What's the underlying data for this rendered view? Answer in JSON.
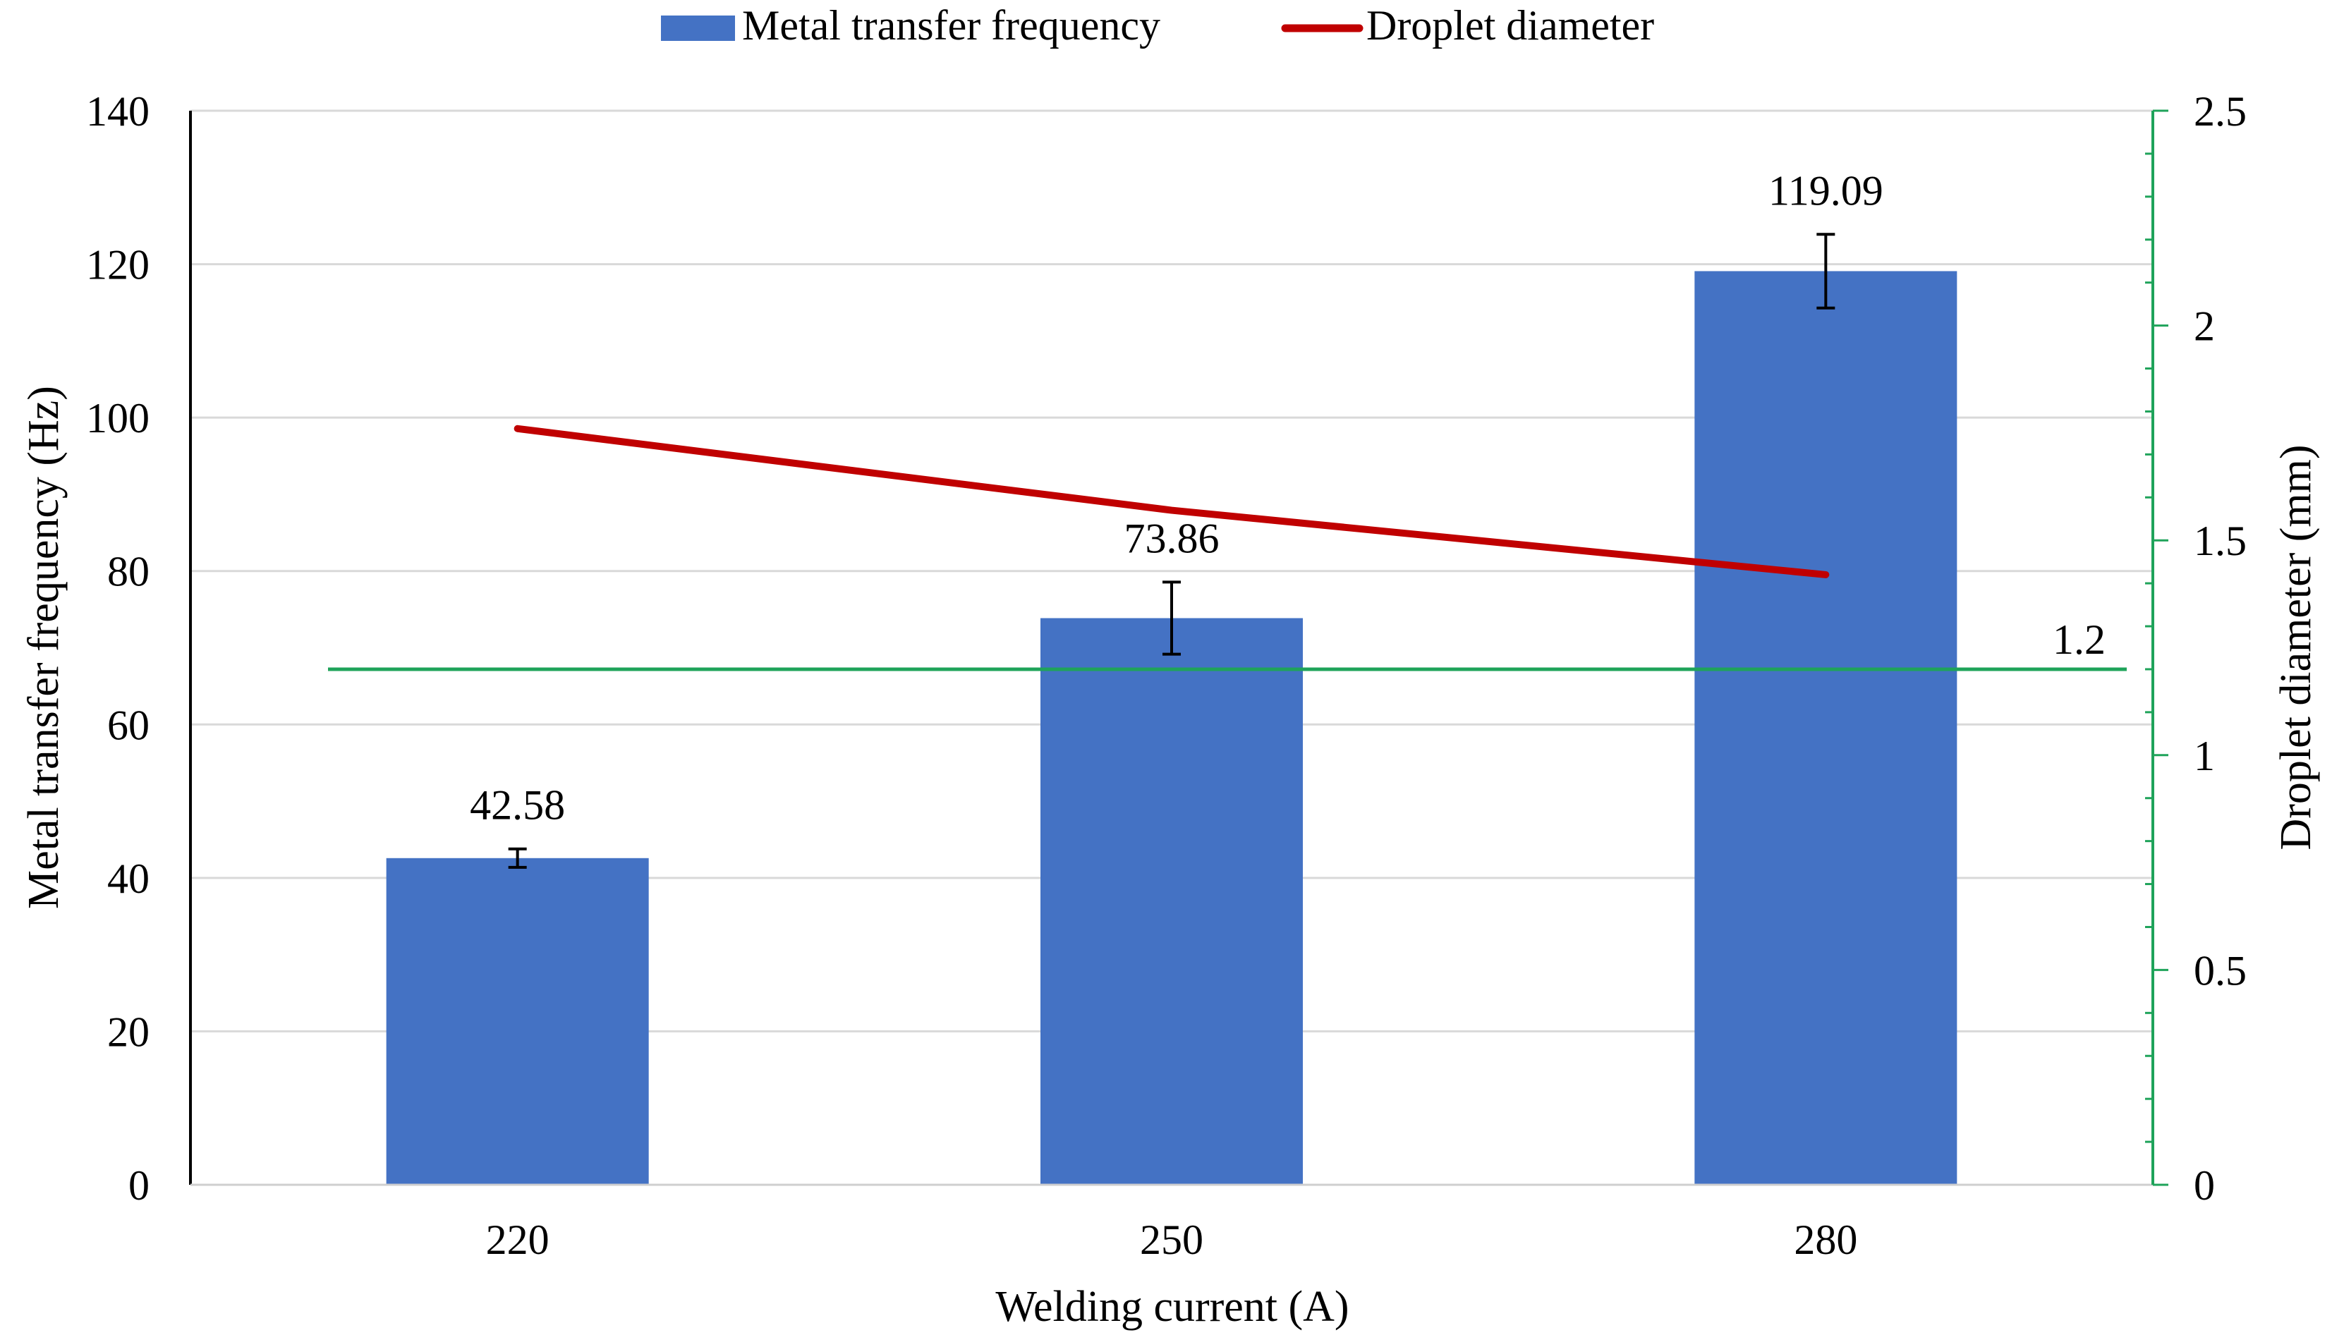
{
  "chart_data": {
    "type": "bar",
    "categories": [
      "220",
      "250",
      "280"
    ],
    "xlabel": "Welding current (A)",
    "ylabel": "Metal transfer frequency (Hz)",
    "y2label": "Droplet diameter (mm)",
    "ylim": [
      0,
      140
    ],
    "yticks": [
      "0",
      "20",
      "40",
      "60",
      "80",
      "100",
      "120",
      "140"
    ],
    "y2lim": [
      0,
      2.5
    ],
    "y2ticks": [
      "0",
      "0.5",
      "1",
      "1.5",
      "2",
      "2.5"
    ],
    "grid": "horizontal",
    "legend_position": "top",
    "series": [
      {
        "name": "Metal transfer frequency",
        "type": "bar",
        "axis": "left",
        "values": [
          42.58,
          73.86,
          119.09
        ],
        "labels": [
          "42.58",
          "73.86",
          "119.09"
        ],
        "error": [
          1.2,
          4.7,
          4.8
        ],
        "color": "#4472C4"
      },
      {
        "name": "Droplet diameter",
        "type": "line",
        "axis": "right",
        "values": [
          1.76,
          1.57,
          1.42
        ],
        "color": "#C00000"
      }
    ],
    "reference_line": {
      "axis": "right",
      "value": 1.2,
      "label": "1.2",
      "color": "#1FA35A"
    }
  }
}
